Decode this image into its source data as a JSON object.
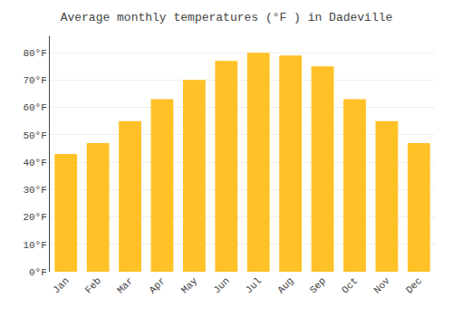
{
  "chart_data": {
    "type": "bar",
    "title": "Average monthly temperatures (°F ) in Dadeville",
    "categories": [
      "Jan",
      "Feb",
      "Mar",
      "Apr",
      "May",
      "Jun",
      "Jul",
      "Aug",
      "Sep",
      "Oct",
      "Nov",
      "Dec"
    ],
    "values": [
      43,
      47,
      55,
      63,
      70,
      77,
      80,
      79,
      75,
      63,
      55,
      47
    ],
    "color": "#FFC125",
    "ylim": [
      0,
      86
    ],
    "yticks": [
      {
        "value": 0,
        "label": "0°F"
      },
      {
        "value": 10,
        "label": "10°F"
      },
      {
        "value": 20,
        "label": "20°F"
      },
      {
        "value": 30,
        "label": "30°F"
      },
      {
        "value": 40,
        "label": "40°F"
      },
      {
        "value": 50,
        "label": "50°F"
      },
      {
        "value": 60,
        "label": "60°F"
      },
      {
        "value": 70,
        "label": "70°F"
      },
      {
        "value": 80,
        "label": "80°F"
      }
    ],
    "grid": true
  }
}
